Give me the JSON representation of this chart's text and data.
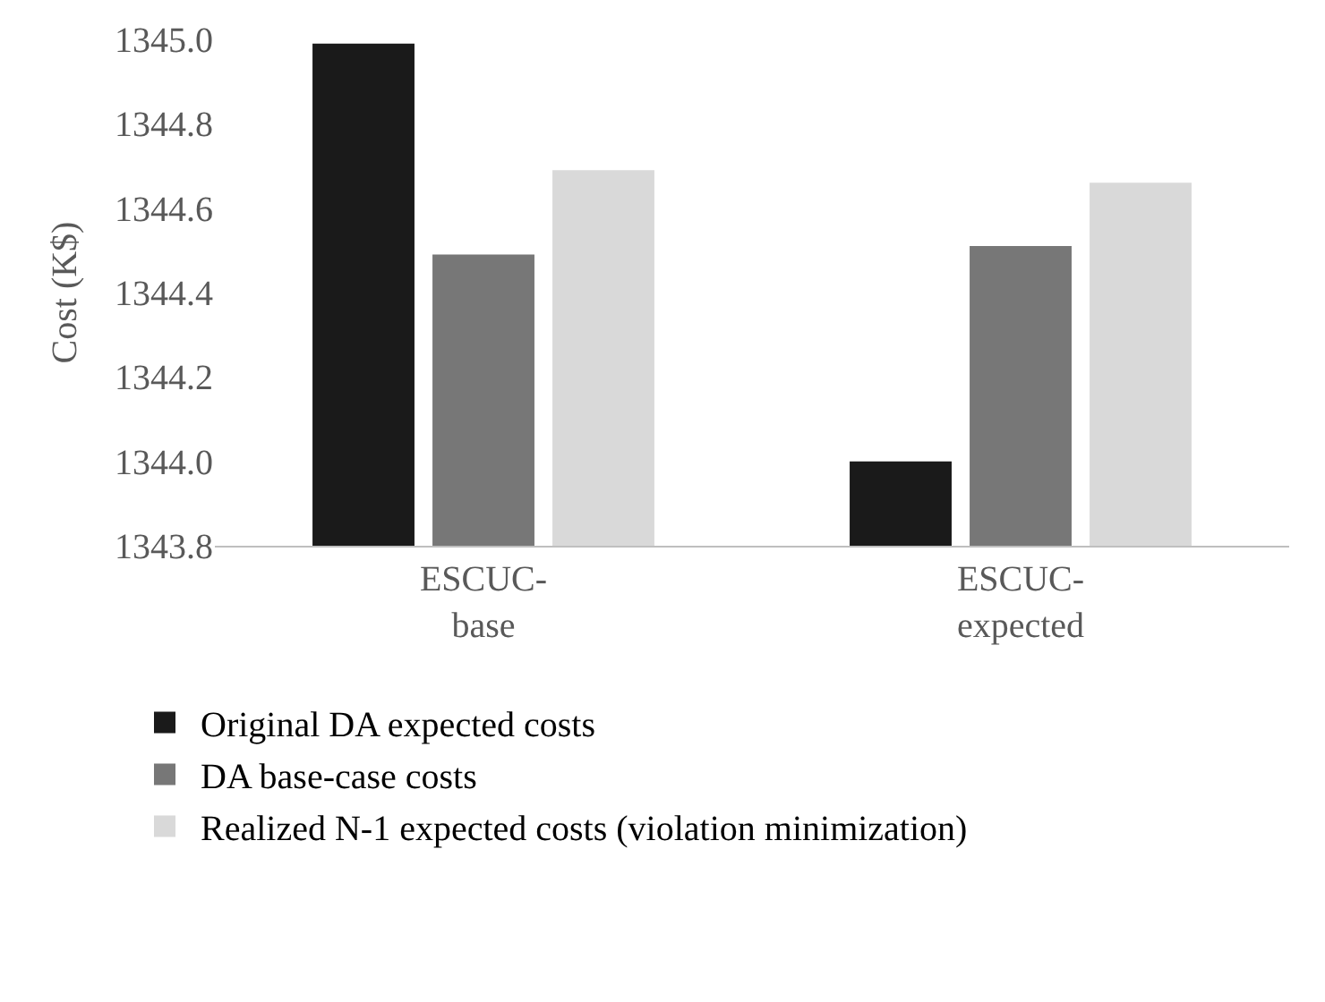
{
  "chart_data": {
    "type": "bar",
    "ylabel": "Cost (K$)",
    "categories": [
      "ESCUC-\nbase",
      "ESCUC-\nexpected"
    ],
    "series": [
      {
        "name": "Original DA expected costs",
        "color": "#1a1a1a",
        "values": [
          1344.99,
          1344.0
        ]
      },
      {
        "name": "DA base-case costs",
        "color": "#777777",
        "values": [
          1344.49,
          1344.51
        ]
      },
      {
        "name": "Realized N-1 expected costs (violation minimization)",
        "color": "#d9d9d9",
        "values": [
          1344.69,
          1344.66
        ]
      }
    ],
    "ylim": [
      1343.8,
      1345.0
    ],
    "yticks": [
      {
        "value": 1343.8,
        "label": "1343.8"
      },
      {
        "value": 1344.0,
        "label": "1344.0"
      },
      {
        "value": 1344.2,
        "label": "1344.2"
      },
      {
        "value": 1344.4,
        "label": "1344.4"
      },
      {
        "value": 1344.6,
        "label": "1344.6"
      },
      {
        "value": 1344.8,
        "label": "1344.8"
      },
      {
        "value": 1345.0,
        "label": "1345.0"
      }
    ],
    "grid": false,
    "legend": "bottom"
  }
}
